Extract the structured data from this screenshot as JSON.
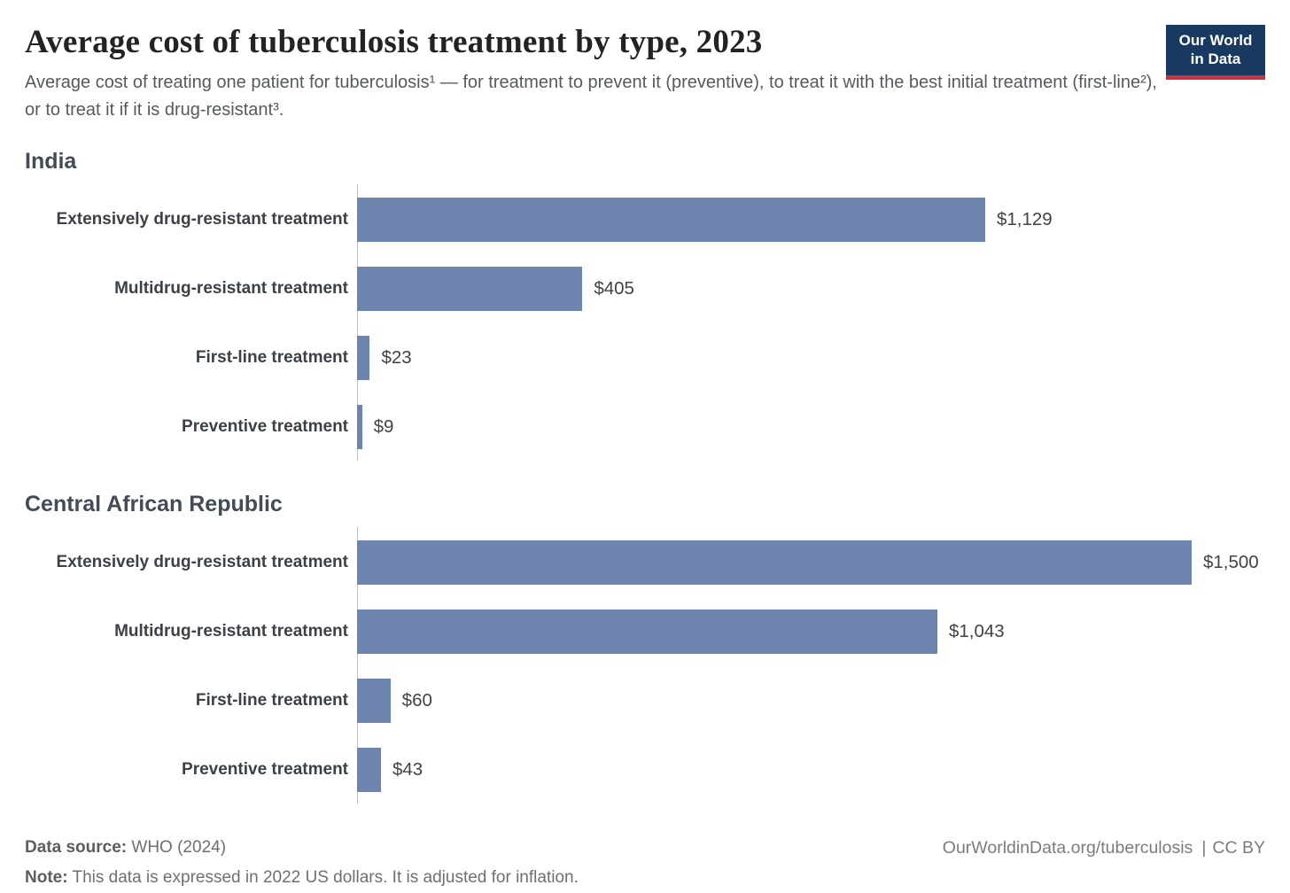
{
  "header": {
    "title": "Average cost of tuberculosis treatment by type, 2023",
    "subtitle": "Average cost of treating one patient for tuberculosis¹ — for treatment to prevent it (preventive), to treat it with the best initial treatment (first-line²), or to treat it if it is drug-resistant³.",
    "logo": {
      "line1": "Our World",
      "line2": "in Data"
    }
  },
  "chart_data": {
    "type": "bar",
    "orientation": "horizontal",
    "title": "Average cost of tuberculosis treatment by type, 2023",
    "unit": "2022 US dollars",
    "categories": [
      "Extensively drug-resistant treatment",
      "Multidrug-resistant treatment",
      "First-line treatment",
      "Preventive treatment"
    ],
    "series": [
      {
        "name": "India",
        "values": [
          1129,
          405,
          23,
          9
        ],
        "value_labels": [
          "$1,129",
          "$405",
          "$23",
          "$9"
        ]
      },
      {
        "name": "Central African Republic",
        "values": [
          1500,
          1043,
          60,
          43
        ],
        "value_labels": [
          "$1,500",
          "$1,043",
          "$60",
          "$43"
        ]
      }
    ],
    "xlim": [
      0,
      1500
    ],
    "grid": false,
    "value_labels_shown": true,
    "bar_color": "#6d84ae",
    "axis_line_color": "#bdbdbd",
    "legend_position": "none"
  },
  "footer": {
    "source_label": "Data source:",
    "source_value": "WHO (2024)",
    "note_label": "Note:",
    "note_value": "This data is expressed in 2022 US dollars. It is adjusted for inflation.",
    "link": "OurWorldinData.org/tuberculosis",
    "separator": "|",
    "license": "CC BY"
  },
  "colors": {
    "bar": "#6d84ae",
    "logo_bg": "#183a60",
    "logo_underline": "#cf303e",
    "title_text": "#232323",
    "subtitle_text": "#545a5e",
    "facet_heading_text": "#414c56"
  }
}
